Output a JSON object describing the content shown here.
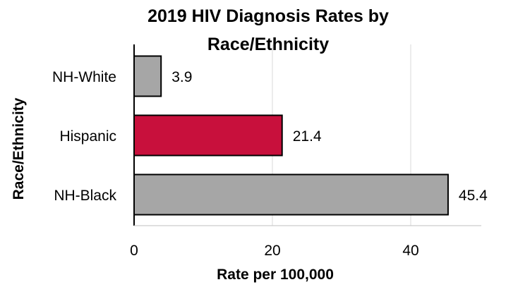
{
  "chart_data": {
    "type": "bar",
    "orientation": "horizontal",
    "title_lines": [
      "2019 HIV Diagnosis Rates by",
      "Race/Ethnicity"
    ],
    "xlabel": "Rate per 100,000",
    "ylabel": "Race/Ethnicity",
    "categories": [
      "NH-White",
      "Hispanic",
      "NH-Black"
    ],
    "values": [
      3.9,
      21.4,
      45.4
    ],
    "data_labels": [
      "3.9",
      "21.4",
      "45.4"
    ],
    "bar_colors": [
      "#a6a6a6",
      "#c8103c",
      "#a6a6a6"
    ],
    "xlim": [
      0,
      50
    ],
    "xticks": [
      0,
      20,
      40
    ],
    "xtick_labels": [
      "0",
      "20",
      "40"
    ],
    "grid": "vertical",
    "legend": "none"
  }
}
